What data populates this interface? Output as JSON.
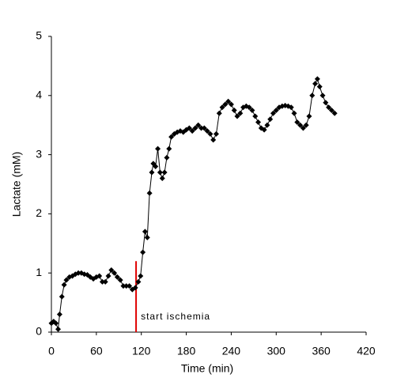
{
  "chart_data": {
    "type": "line",
    "xlabel": "Time  (min)",
    "ylabel": "Lactate  (mM)",
    "xlim": [
      0,
      420
    ],
    "xticks": [
      0,
      60,
      120,
      180,
      240,
      300,
      360,
      420
    ],
    "ylim": [
      0,
      5
    ],
    "yticks": [
      0,
      1,
      2,
      3,
      4,
      5
    ],
    "grid": false,
    "x": [
      0,
      3,
      6,
      9,
      11,
      14,
      17,
      20,
      24,
      28,
      32,
      36,
      40,
      44,
      48,
      52,
      56,
      60,
      64,
      68,
      72,
      76,
      80,
      84,
      88,
      92,
      96,
      100,
      104,
      108,
      112,
      116,
      119,
      122,
      125,
      128,
      131,
      134,
      136,
      139,
      142,
      145,
      148,
      151,
      154,
      157,
      160,
      164,
      168,
      172,
      176,
      180,
      184,
      188,
      192,
      196,
      200,
      204,
      208,
      212,
      216,
      220,
      224,
      228,
      232,
      236,
      240,
      244,
      248,
      252,
      256,
      260,
      264,
      268,
      272,
      276,
      280,
      284,
      288,
      292,
      296,
      300,
      304,
      308,
      312,
      316,
      320,
      324,
      328,
      332,
      336,
      340,
      344,
      348,
      352,
      355,
      358,
      362,
      366,
      370,
      374,
      378
    ],
    "series": [
      {
        "color": "#000000",
        "marker": "diamond",
        "values": [
          0.15,
          0.18,
          0.15,
          0.05,
          0.3,
          0.6,
          0.8,
          0.88,
          0.93,
          0.95,
          0.98,
          1.0,
          1.0,
          0.98,
          0.97,
          0.93,
          0.9,
          0.93,
          0.95,
          0.85,
          0.85,
          0.95,
          1.05,
          1.0,
          0.93,
          0.88,
          0.78,
          0.78,
          0.78,
          0.72,
          0.75,
          0.85,
          0.95,
          1.35,
          1.7,
          1.6,
          2.35,
          2.7,
          2.85,
          2.8,
          3.1,
          2.7,
          2.6,
          2.7,
          2.95,
          3.1,
          3.3,
          3.35,
          3.38,
          3.4,
          3.38,
          3.42,
          3.45,
          3.4,
          3.45,
          3.5,
          3.45,
          3.45,
          3.4,
          3.35,
          3.25,
          3.35,
          3.7,
          3.8,
          3.85,
          3.9,
          3.85,
          3.75,
          3.65,
          3.7,
          3.8,
          3.82,
          3.8,
          3.75,
          3.65,
          3.55,
          3.45,
          3.42,
          3.5,
          3.6,
          3.7,
          3.75,
          3.8,
          3.82,
          3.83,
          3.82,
          3.8,
          3.7,
          3.55,
          3.5,
          3.45,
          3.5,
          3.65,
          4.0,
          4.2,
          4.28,
          4.15,
          4.0,
          3.88,
          3.8,
          3.75,
          3.7
        ]
      }
    ],
    "annotations": [
      {
        "text": "start ischemia",
        "x": 113,
        "y": 1.2,
        "color": "#e00000"
      }
    ]
  }
}
